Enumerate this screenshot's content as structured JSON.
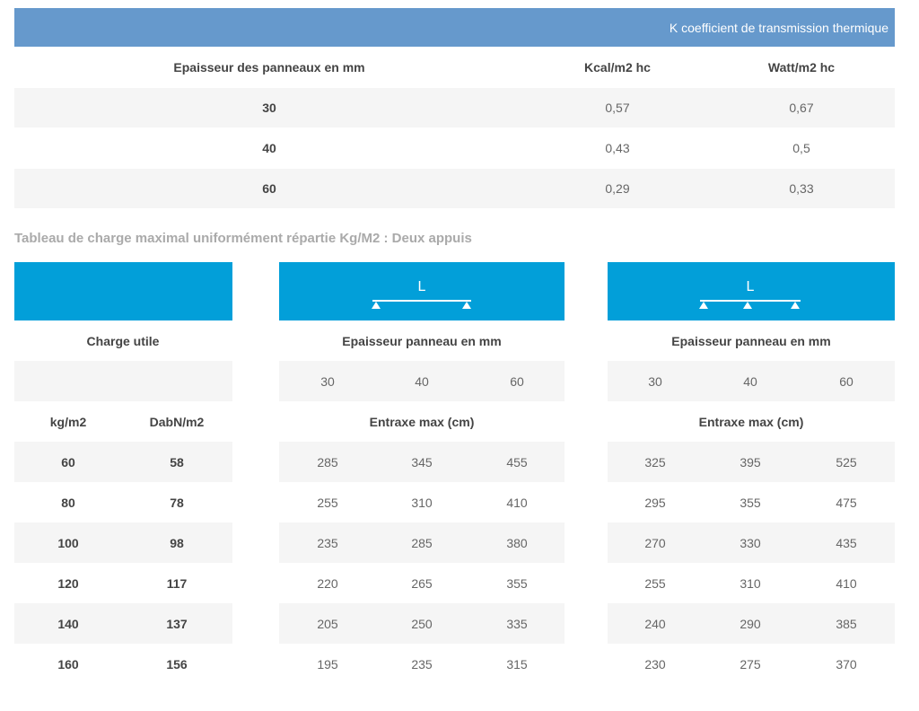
{
  "thermal": {
    "title": "K coefficient de transmission thermique",
    "headers": [
      "Epaisseur des panneaux en mm",
      "Kcal/m2 hc",
      "Watt/m2 hc"
    ],
    "rows": [
      [
        "30",
        "0,57",
        "0,67"
      ],
      [
        "40",
        "0,43",
        "0,5"
      ],
      [
        "60",
        "0,29",
        "0,33"
      ]
    ]
  },
  "load": {
    "caption": "Tableau de charge maximal uniformément répartie Kg/M2 : Deux appuis",
    "charge_label": "Charge utile",
    "units": [
      "kg/m2",
      "DabN/m2"
    ],
    "loads": [
      [
        "60",
        "58"
      ],
      [
        "80",
        "78"
      ],
      [
        "100",
        "98"
      ],
      [
        "120",
        "117"
      ],
      [
        "140",
        "137"
      ],
      [
        "160",
        "156"
      ]
    ],
    "groups": [
      {
        "span_label": "L",
        "header": "Epaisseur panneau en mm",
        "thicknesses": [
          "30",
          "40",
          "60"
        ],
        "subheader": "Entraxe max (cm)",
        "rows": [
          [
            "285",
            "345",
            "455"
          ],
          [
            "255",
            "310",
            "410"
          ],
          [
            "235",
            "285",
            "380"
          ],
          [
            "220",
            "265",
            "355"
          ],
          [
            "205",
            "250",
            "335"
          ],
          [
            "195",
            "235",
            "315"
          ]
        ]
      },
      {
        "span_label": "L",
        "header": "Epaisseur panneau en mm",
        "thicknesses": [
          "30",
          "40",
          "60"
        ],
        "subheader": "Entraxe max (cm)",
        "rows": [
          [
            "325",
            "395",
            "525"
          ],
          [
            "295",
            "355",
            "475"
          ],
          [
            "270",
            "330",
            "435"
          ],
          [
            "255",
            "310",
            "410"
          ],
          [
            "240",
            "290",
            "385"
          ],
          [
            "230",
            "275",
            "370"
          ]
        ]
      }
    ]
  }
}
